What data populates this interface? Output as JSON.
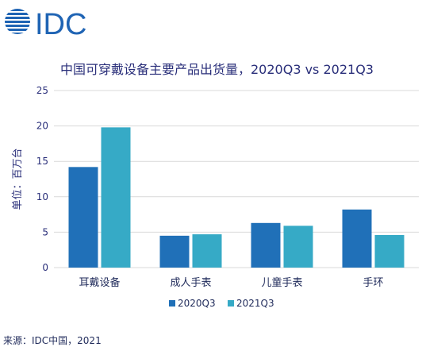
{
  "logo": {
    "text": "IDC",
    "globe_color": "#1f64b4",
    "text_color": "#1f64b4"
  },
  "chart_data": {
    "type": "bar",
    "title": "中国可穿戴设备主要产品出货量，2020Q3 vs 2021Q3",
    "ylabel": "单位：百万台",
    "xlabel": "",
    "categories": [
      "耳戴设备",
      "成人手表",
      "儿童手表",
      "手环"
    ],
    "series": [
      {
        "name": "2020Q3",
        "values": [
          14.2,
          4.5,
          6.3,
          8.2
        ],
        "color": "#2070b8"
      },
      {
        "name": "2021Q3",
        "values": [
          19.8,
          4.7,
          5.9,
          4.6
        ],
        "color": "#36aac6"
      }
    ],
    "ylim": [
      0,
      25
    ],
    "yticks": [
      "0",
      "5",
      "10",
      "15",
      "20",
      "25"
    ],
    "grid": true,
    "legend": "bottom"
  },
  "source_text": "来源：IDC中国，2021"
}
